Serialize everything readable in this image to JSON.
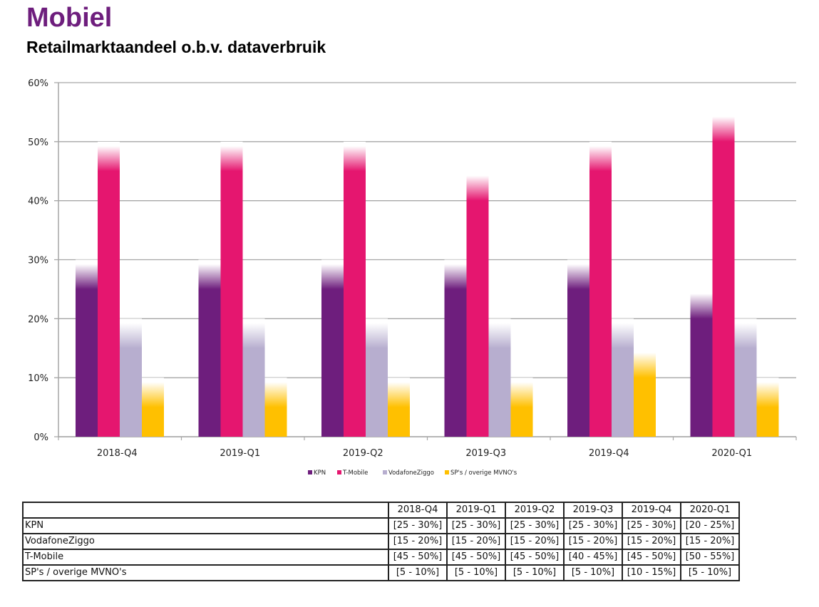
{
  "header": {
    "title": "Mobiel",
    "subtitle": "Retailmarktaandeel o.b.v. dataverbruik"
  },
  "colors": {
    "title": "#6e1e7d",
    "KPN": "#6e1e7d",
    "T-Mobile": "#e5166f",
    "VodafoneZiggo": "#b7aecf",
    "SP's / overige MVNO's": "#ffc000",
    "grid": "#a6a6a6"
  },
  "chart_data": {
    "type": "bar",
    "title": "Retailmarktaandeel o.b.v. dataverbruik",
    "xlabel": "",
    "ylabel": "",
    "ylim": [
      0,
      60
    ],
    "yticks": [
      0,
      10,
      20,
      30,
      40,
      50,
      60
    ],
    "ytick_labels": [
      "0%",
      "10%",
      "20%",
      "30%",
      "40%",
      "50%",
      "60%"
    ],
    "grid": true,
    "legend_position": "bottom",
    "categories": [
      "2018-Q4",
      "2019-Q1",
      "2019-Q2",
      "2019-Q3",
      "2019-Q4",
      "2020-Q1"
    ],
    "series": [
      {
        "name": "KPN",
        "low": [
          25,
          25,
          25,
          25,
          25,
          20
        ],
        "values": [
          30,
          30,
          30,
          30,
          30,
          25
        ]
      },
      {
        "name": "T-Mobile",
        "low": [
          45,
          45,
          45,
          40,
          45,
          50
        ],
        "values": [
          50,
          50,
          50,
          45,
          50,
          55
        ]
      },
      {
        "name": "VodafoneZiggo",
        "low": [
          15,
          15,
          15,
          15,
          15,
          15
        ],
        "values": [
          20,
          20,
          20,
          20,
          20,
          20
        ]
      },
      {
        "name": "SP's / overige MVNO's",
        "low": [
          5,
          5,
          5,
          5,
          10,
          5
        ],
        "values": [
          10,
          10,
          10,
          10,
          15,
          10
        ]
      }
    ]
  },
  "table": {
    "columns": [
      "",
      "2018-Q4",
      "2019-Q1",
      "2019-Q2",
      "2019-Q3",
      "2019-Q4",
      "2020-Q1"
    ],
    "rows": [
      {
        "label": "KPN",
        "cells": [
          "[25 - 30%]",
          "[25 - 30%]",
          "[25 - 30%]",
          "[25 - 30%]",
          "[25 - 30%]",
          "[20 - 25%]"
        ]
      },
      {
        "label": "VodafoneZiggo",
        "cells": [
          "[15 - 20%]",
          "[15 - 20%]",
          "[15 - 20%]",
          "[15 - 20%]",
          "[15 - 20%]",
          "[15 - 20%]"
        ]
      },
      {
        "label": "T-Mobile",
        "cells": [
          "[45 - 50%]",
          "[45 - 50%]",
          "[45 - 50%]",
          "[40 - 45%]",
          "[45 - 50%]",
          "[50 - 55%]"
        ]
      },
      {
        "label": "SP's / overige MVNO's",
        "cells": [
          "[5 - 10%]",
          "[5 - 10%]",
          "[5 - 10%]",
          "[5 - 10%]",
          "[10 - 15%]",
          "[5 - 10%]"
        ]
      }
    ]
  }
}
